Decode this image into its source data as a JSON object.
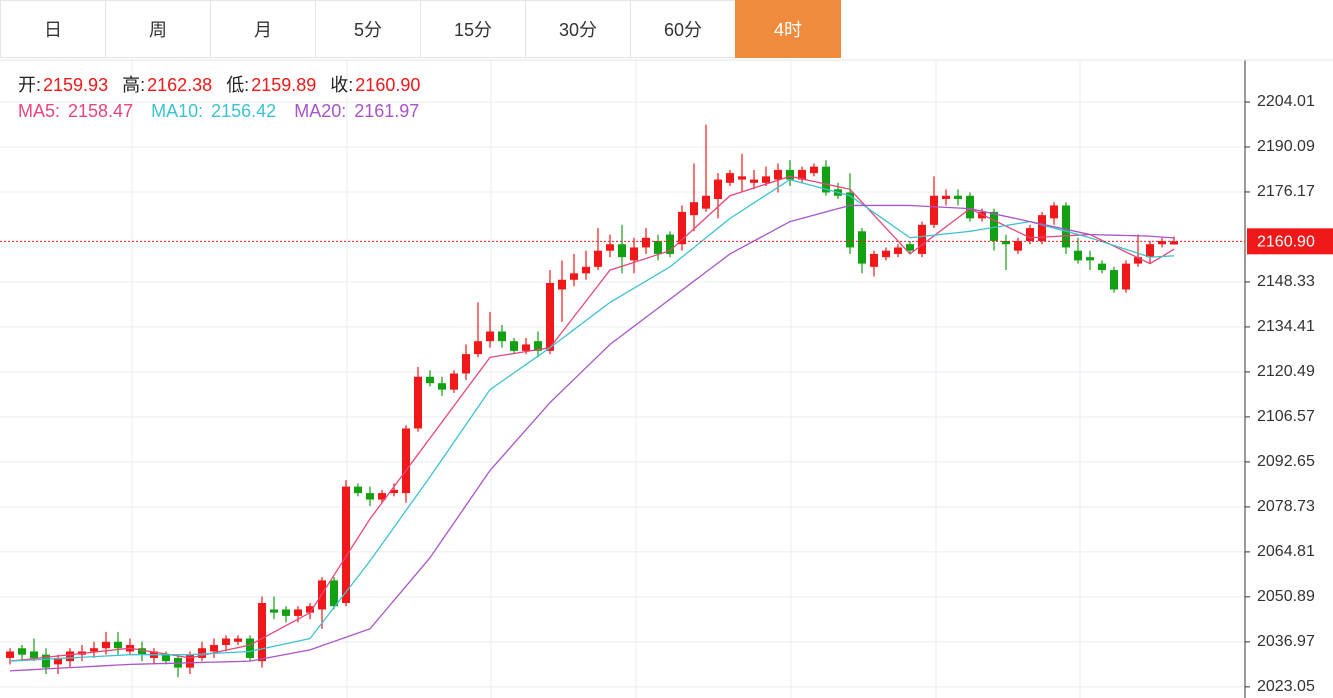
{
  "tabs": [
    "日",
    "周",
    "月",
    "5分",
    "15分",
    "30分",
    "60分",
    "4时"
  ],
  "active_tab": 7,
  "chart_data": {
    "type": "candlestick",
    "info": [
      {
        "label": "开:",
        "value": "2159.93"
      },
      {
        "label": "高:",
        "value": "2162.38"
      },
      {
        "label": "低:",
        "value": "2159.89"
      },
      {
        "label": "收:",
        "value": "2160.90"
      }
    ],
    "up_color": "#f01818",
    "down_color": "#12a112",
    "open": [
      2032,
      2035,
      2034,
      2033,
      2030,
      2031,
      2033,
      2034,
      2035,
      2037,
      2034,
      2035,
      2032,
      2033,
      2032,
      2029,
      2032,
      2034,
      2036,
      2037,
      2038,
      2031,
      2047,
      2047,
      2045,
      2046,
      2047,
      2056,
      2049,
      2085,
      2083,
      2081,
      2083,
      2083,
      2103,
      2119,
      2117,
      2115,
      2120,
      2126,
      2130,
      2133,
      2130,
      2127,
      2130,
      2127,
      2146,
      2149,
      2151,
      2153,
      2158,
      2160,
      2155,
      2159,
      2161,
      2163,
      2160,
      2169,
      2171,
      2174,
      2179,
      2180,
      2179,
      2179,
      2180,
      2183,
      2180,
      2182,
      2184,
      2177,
      2176,
      2164,
      2153,
      2156,
      2157,
      2160,
      2157,
      2166,
      2174,
      2175,
      2175,
      2168,
      2170,
      2161,
      2158,
      2161,
      2161,
      2168,
      2172,
      2158,
      2156,
      2154,
      2152,
      2146,
      2154,
      2156,
      2160,
      2159.93
    ],
    "high": [
      2035,
      2036,
      2038,
      2035,
      2033,
      2035,
      2036,
      2037,
      2040,
      2040,
      2038,
      2037,
      2035,
      2034,
      2033,
      2034,
      2037,
      2038,
      2039,
      2039,
      2039,
      2051,
      2051,
      2048,
      2048,
      2049,
      2057,
      2057,
      2087,
      2086,
      2085,
      2084,
      2086,
      2104,
      2122,
      2121,
      2119,
      2121,
      2129,
      2142,
      2139,
      2135,
      2131,
      2131,
      2133,
      2152,
      2155,
      2157,
      2158,
      2165,
      2163,
      2166,
      2162,
      2165,
      2163,
      2164,
      2172,
      2185,
      2197,
      2182,
      2183,
      2188,
      2183,
      2184,
      2185,
      2186,
      2184,
      2185,
      2186,
      2179,
      2182,
      2165,
      2158,
      2159,
      2160,
      2161,
      2167,
      2181,
      2177,
      2177,
      2176,
      2171,
      2171,
      2163,
      2162,
      2166,
      2170,
      2173,
      2173,
      2162,
      2158,
      2155,
      2153,
      2155,
      2163,
      2161,
      2162,
      2162.38
    ],
    "low": [
      2030,
      2031,
      2031,
      2027,
      2027,
      2029,
      2031,
      2032,
      2033,
      2033,
      2033,
      2031,
      2030,
      2030,
      2026,
      2027,
      2031,
      2032,
      2034,
      2036,
      2031,
      2029,
      2044,
      2043,
      2043,
      2044,
      2041,
      2047,
      2048,
      2082,
      2079,
      2080,
      2082,
      2080,
      2102,
      2116,
      2113,
      2114,
      2118,
      2125,
      2128,
      2128,
      2126,
      2126,
      2125,
      2126,
      2136,
      2147,
      2149,
      2152,
      2156,
      2151,
      2151,
      2157,
      2155,
      2156,
      2158,
      2164,
      2170,
      2168,
      2178,
      2176,
      2177,
      2178,
      2176,
      2178,
      2179,
      2181,
      2175,
      2174,
      2157,
      2151,
      2150,
      2155,
      2156,
      2157,
      2156,
      2165,
      2172,
      2172,
      2167,
      2167,
      2158,
      2152,
      2157,
      2160,
      2160,
      2166,
      2157,
      2154,
      2152,
      2151,
      2145,
      2145,
      2153,
      2154,
      2159,
      2159.89
    ],
    "close": [
      2034,
      2033,
      2032,
      2029,
      2032,
      2034,
      2034,
      2035,
      2037,
      2035,
      2036,
      2033,
      2034,
      2031,
      2029,
      2033,
      2035,
      2036,
      2038,
      2038,
      2032,
      2049,
      2046,
      2045,
      2047,
      2048,
      2056,
      2048,
      2085,
      2083,
      2081,
      2083,
      2084,
      2103,
      2119,
      2117,
      2115,
      2120,
      2126,
      2130,
      2133,
      2130,
      2127,
      2129,
      2127,
      2148,
      2149,
      2151,
      2153,
      2158,
      2160,
      2156,
      2159,
      2162,
      2157,
      2157,
      2170,
      2173,
      2175,
      2180,
      2182,
      2181,
      2180,
      2181,
      2183,
      2180,
      2183,
      2184,
      2176,
      2175,
      2159,
      2154,
      2157,
      2158,
      2159,
      2158,
      2166,
      2175,
      2175,
      2174,
      2168,
      2170,
      2161,
      2160,
      2161,
      2165,
      2169,
      2172,
      2159,
      2155,
      2155,
      2152,
      2146,
      2154,
      2156,
      2160,
      2161,
      2160.9
    ],
    "series": [
      {
        "name": "MA5:",
        "value_label": "2158.47",
        "color": "#e8457a",
        "values": [
          2031,
          2031.4,
          2031.8,
          2032.2,
          2032.6,
          2033,
          2033.4,
          2033.8,
          2034.2,
          2034.6,
          2035,
          2034.4,
          2033.8,
          2033.2,
          2032.6,
          2032,
          2032.8,
          2033.6,
          2034.4,
          2035.2,
          2036,
          2038,
          2040,
          2042,
          2044,
          2046,
          2051.8,
          2057.6,
          2063.4,
          2069.2,
          2075,
          2080,
          2085,
          2090,
          2095,
          2100,
          2105,
          2110,
          2115,
          2120,
          2125,
          2125.6,
          2126.2,
          2126.8,
          2127.4,
          2128,
          2132.8,
          2137.6,
          2142.4,
          2147.2,
          2152,
          2153.2,
          2154.4,
          2155.6,
          2156.8,
          2158,
          2161.4,
          2164.8,
          2168.2,
          2171.6,
          2175,
          2176.2,
          2177.4,
          2178.6,
          2179.8,
          2181,
          2180.2,
          2179.4,
          2178.6,
          2177.8,
          2177,
          2173,
          2169,
          2165,
          2161,
          2157,
          2159.8,
          2162.6,
          2165.4,
          2168.2,
          2171,
          2169.2,
          2167.4,
          2165.6,
          2163.8,
          2162,
          2162.2,
          2162.4,
          2162.6,
          2162.8,
          2163,
          2161.2,
          2159.4,
          2157.6,
          2155.8,
          2154,
          2156.2,
          2158.47
        ]
      },
      {
        "name": "MA10:",
        "value_label": "2156.42",
        "color": "#3cc3d1",
        "values": [
          2031,
          2031.2,
          2031.4,
          2031.6,
          2031.8,
          2032,
          2032.2,
          2032.4,
          2032.6,
          2032.8,
          2033,
          2033,
          2033,
          2033,
          2033,
          2033,
          2033.2,
          2033.4,
          2033.6,
          2033.8,
          2034,
          2034.8,
          2035.6,
          2036.4,
          2037.2,
          2038,
          2042.8,
          2047.6,
          2052.4,
          2057.2,
          2062,
          2067.2,
          2072.4,
          2077.6,
          2082.8,
          2088,
          2093.4,
          2098.8,
          2104.2,
          2109.6,
          2115,
          2117.6,
          2120.2,
          2122.8,
          2125.4,
          2128,
          2130.8,
          2133.6,
          2136.4,
          2139.2,
          2142,
          2144.2,
          2146.4,
          2148.6,
          2150.8,
          2153,
          2156,
          2159,
          2162,
          2165,
          2168,
          2170.4,
          2172.8,
          2175.2,
          2177.6,
          2180,
          2179,
          2178,
          2177,
          2176,
          2175,
          2172.4,
          2169.8,
          2167.2,
          2164.6,
          2162,
          2162.4,
          2162.8,
          2163.2,
          2163.6,
          2164,
          2164.6,
          2165.2,
          2165.8,
          2166.4,
          2167,
          2166,
          2165,
          2164,
          2163,
          2162,
          2160.8,
          2159.6,
          2158.4,
          2157.2,
          2156,
          2156.2,
          2156.42
        ]
      },
      {
        "name": "MA20:",
        "value_label": "2161.97",
        "color": "#a855c8",
        "values": [
          2028,
          2028.2,
          2028.4,
          2028.6,
          2028.8,
          2029,
          2029.2,
          2029.4,
          2029.6,
          2029.8,
          2030,
          2030.1,
          2030.2,
          2030.3,
          2030.4,
          2030.5,
          2030.6,
          2030.7,
          2030.8,
          2030.9,
          2031,
          2031.7,
          2032.4,
          2033.1,
          2033.8,
          2034.5,
          2035.8,
          2037.1,
          2038.4,
          2039.7,
          2041,
          2045.4,
          2049.8,
          2054.2,
          2058.6,
          2063,
          2068.4,
          2073.8,
          2079.2,
          2084.6,
          2090,
          2094.2,
          2098.4,
          2102.6,
          2106.8,
          2111,
          2114.6,
          2118.2,
          2121.8,
          2125.4,
          2129,
          2131.8,
          2134.6,
          2137.4,
          2140.2,
          2143,
          2145.8,
          2148.6,
          2151.4,
          2154.2,
          2157,
          2159,
          2161,
          2163,
          2165,
          2167,
          2168,
          2169,
          2170,
          2171,
          2172,
          2172,
          2172,
          2172,
          2172,
          2172,
          2171.8,
          2171.6,
          2171.4,
          2171.2,
          2171,
          2170.2,
          2169.4,
          2168.6,
          2167.8,
          2167,
          2166.2,
          2165.4,
          2164.6,
          2163.8,
          2163,
          2162.9,
          2162.8,
          2162.7,
          2162.6,
          2162.5,
          2162.2,
          2161.97
        ]
      }
    ],
    "last_price": {
      "value": 2160.9,
      "label": "2160.90"
    },
    "ylim": [
      2019.6,
      2217.0
    ],
    "yticks": [
      2204.01,
      2190.09,
      2176.17,
      2148.33,
      2134.41,
      2120.49,
      2106.57,
      2092.65,
      2078.73,
      2064.81,
      2050.89,
      2036.97,
      2023.05
    ],
    "grid": true
  }
}
